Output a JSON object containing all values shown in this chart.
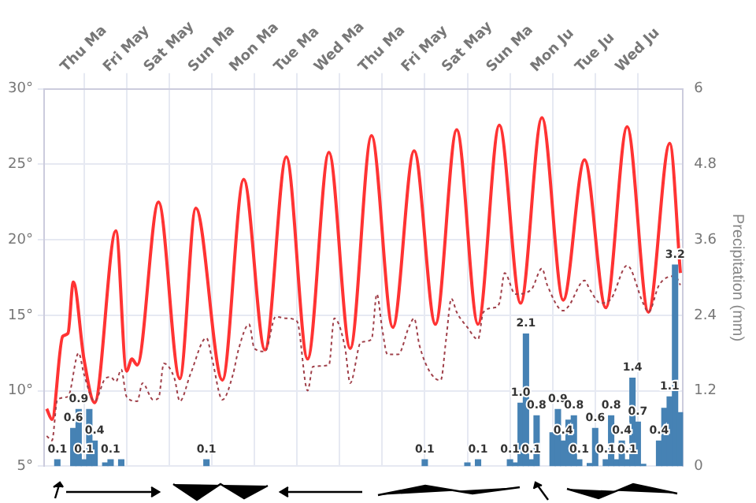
{
  "chart_data": {
    "type": "line",
    "y2label": "Precipitation (mm)",
    "categories": [
      null,
      null,
      null,
      null,
      null,
      null,
      null,
      "Thu Ma",
      null,
      null,
      null,
      null,
      null,
      null,
      null,
      "Fri May",
      null,
      null,
      null,
      null,
      null,
      null,
      null,
      "Sat May",
      null,
      null,
      null,
      null,
      null,
      null,
      null,
      "Sun Ma",
      null,
      null,
      null,
      null,
      null,
      null,
      null,
      "Mon Ma",
      null,
      null,
      null,
      null,
      null,
      null,
      null,
      "Tue Ma",
      null,
      null,
      null,
      null,
      null,
      null,
      null,
      "Wed Ma",
      null,
      null,
      null,
      null,
      null,
      null,
      null,
      "Thu Ma",
      null,
      null,
      null,
      null,
      null,
      null,
      null,
      "Fri May",
      null,
      null,
      null,
      null,
      null,
      null,
      null,
      "Sat May",
      null,
      null,
      null,
      null,
      null,
      null,
      null,
      "Sun Ma",
      null,
      null,
      null,
      null,
      null,
      null,
      null,
      "Mon Ju",
      null,
      null,
      null,
      null,
      null,
      null,
      null,
      "Tue Ju",
      null,
      null,
      null,
      null,
      null,
      null,
      null,
      "Wed Ju",
      null,
      null,
      null,
      null,
      null,
      null,
      null,
      null
    ],
    "ylim": [
      5,
      30
    ],
    "yticks": [
      {
        "value": 5,
        "label": "5°"
      },
      {
        "value": 10,
        "label": "10°"
      },
      {
        "value": 15,
        "label": "15°"
      },
      {
        "value": 20,
        "label": "20°"
      },
      {
        "value": 25,
        "label": "25°"
      },
      {
        "value": 30,
        "label": "30°"
      }
    ],
    "y2lim": [
      0,
      6
    ],
    "y2ticks": [
      0,
      1.2,
      2.4,
      3.6,
      4.8,
      6
    ],
    "grid": true,
    "series": [
      {
        "type": "bar",
        "axis": "y2",
        "color": "#4682b4",
        "values": [
          null,
          null,
          0.1,
          null,
          null,
          0.6,
          0.9,
          0.1,
          0.9,
          0.4,
          null,
          0.05,
          0.1,
          null,
          0.1,
          null,
          null,
          null,
          null,
          null,
          null,
          null,
          null,
          null,
          null,
          null,
          null,
          null,
          null,
          null,
          0.1,
          null,
          null,
          null,
          null,
          null,
          null,
          null,
          null,
          null,
          null,
          null,
          null,
          null,
          null,
          null,
          null,
          null,
          null,
          null,
          null,
          null,
          null,
          null,
          null,
          null,
          null,
          null,
          null,
          null,
          null,
          null,
          null,
          null,
          null,
          null,
          null,
          null,
          null,
          null,
          null,
          0.1,
          null,
          null,
          null,
          null,
          null,
          null,
          null,
          0.05,
          null,
          0.1,
          null,
          null,
          null,
          null,
          null,
          0.1,
          0.05,
          1.0,
          2.1,
          0.1,
          0.8,
          null,
          null,
          0.53,
          0.9,
          0.4,
          0.73,
          0.8,
          0.1,
          null,
          0.04,
          0.6,
          null,
          0.1,
          0.8,
          0.1,
          0.4,
          0.1,
          1.4,
          0.7,
          0.03,
          null,
          null,
          0.4,
          0.92,
          1.1,
          3.2,
          0.85
        ],
        "value_labels": [
          null,
          null,
          "0.1",
          null,
          null,
          "0.6",
          "0.9",
          "0.1",
          null,
          "0.4",
          null,
          null,
          "0.1",
          null,
          null,
          null,
          null,
          null,
          null,
          null,
          null,
          null,
          null,
          null,
          null,
          null,
          null,
          null,
          null,
          null,
          "0.1",
          null,
          null,
          null,
          null,
          null,
          null,
          null,
          null,
          null,
          null,
          null,
          null,
          null,
          null,
          null,
          null,
          null,
          null,
          null,
          null,
          null,
          null,
          null,
          null,
          null,
          null,
          null,
          null,
          null,
          null,
          null,
          null,
          null,
          null,
          null,
          null,
          null,
          null,
          null,
          null,
          "0.1",
          null,
          null,
          null,
          null,
          null,
          null,
          null,
          null,
          null,
          "0.1",
          null,
          null,
          null,
          null,
          null,
          "0.1",
          null,
          "1.0",
          "2.1",
          "0.1",
          "0.8",
          null,
          null,
          null,
          "0.9",
          "0.4",
          null,
          "0.8",
          "0.1",
          null,
          null,
          "0.6",
          null,
          "0.1",
          "0.8",
          null,
          "0.4",
          "0.1",
          "1.4",
          "0.7",
          null,
          null,
          null,
          "0.4",
          null,
          "1.1",
          "3.2",
          null
        ]
      },
      {
        "type": "line",
        "color": "#a0404a",
        "line_style": "dotted",
        "marker": "none",
        "values": [
          7.0,
          6.7,
          9.4,
          null,
          9.6,
          null,
          12.5,
          11.1,
          null,
          9.3,
          null,
          10.8,
          10.9,
          10.6,
          11.4,
          9.6,
          null,
          9.3,
          10.5,
          null,
          9.4,
          9.5,
          11.8,
          null,
          10.8,
          9.3,
          null,
          11.1,
          null,
          null,
          13.5,
          12.2,
          null,
          9.4,
          null,
          11.1,
          12.7,
          null,
          14.4,
          12.8,
          null,
          12.6,
          null,
          14.9,
          null,
          14.8,
          null,
          14.6,
          null,
          10.0,
          11.6,
          null,
          null,
          11.7,
          14.8,
          null,
          12.9,
          10.5,
          null,
          13.2,
          null,
          13.4,
          16.4,
          14.1,
          12.4,
          null,
          12.4,
          null,
          14.2,
          14.8,
          13.0,
          null,
          null,
          10.8,
          10.7,
          13.4,
          16.1,
          15.2,
          null,
          14.2,
          null,
          13.4,
          15.2,
          null,
          15.5,
          15.8,
          17.8,
          null,
          16.4,
          null,
          null,
          16.7,
          null,
          18.1,
          17.0,
          null,
          null,
          15.3,
          15.6,
          null,
          null,
          17.3,
          16.7,
          null,
          15.8,
          null,
          16.1,
          null,
          null,
          18.3,
          null,
          null,
          15.8,
          15.2,
          null,
          17.0,
          null,
          null,
          17.6,
          17.0
        ]
      },
      {
        "type": "line",
        "color": "#ff3333",
        "line_style": "solid",
        "marker": "none",
        "values": [
          8.8,
          8.1,
          null,
          13.6,
          13.8,
          17.2,
          null,
          12.1,
          null,
          9.2,
          null,
          null,
          null,
          20.6,
          null,
          11.3,
          12.1,
          11.7,
          null,
          null,
          null,
          22.5,
          null,
          null,
          null,
          10.8,
          null,
          null,
          22.1,
          null,
          null,
          null,
          null,
          10.7,
          null,
          null,
          null,
          24.0,
          null,
          null,
          null,
          12.7,
          null,
          null,
          null,
          25.5,
          null,
          null,
          null,
          12.1,
          null,
          null,
          null,
          25.8,
          null,
          null,
          null,
          12.8,
          null,
          null,
          null,
          26.9,
          null,
          null,
          null,
          14.2,
          null,
          null,
          null,
          25.9,
          null,
          null,
          null,
          14.4,
          null,
          null,
          null,
          27.3,
          null,
          null,
          null,
          14.4,
          null,
          null,
          null,
          27.6,
          null,
          null,
          null,
          15.8,
          null,
          null,
          null,
          28.1,
          null,
          null,
          null,
          16.0,
          null,
          null,
          null,
          25.3,
          null,
          null,
          null,
          15.5,
          null,
          null,
          null,
          27.5,
          null,
          null,
          null,
          15.2,
          null,
          null,
          null,
          26.4,
          null,
          17.8
        ]
      }
    ]
  }
}
